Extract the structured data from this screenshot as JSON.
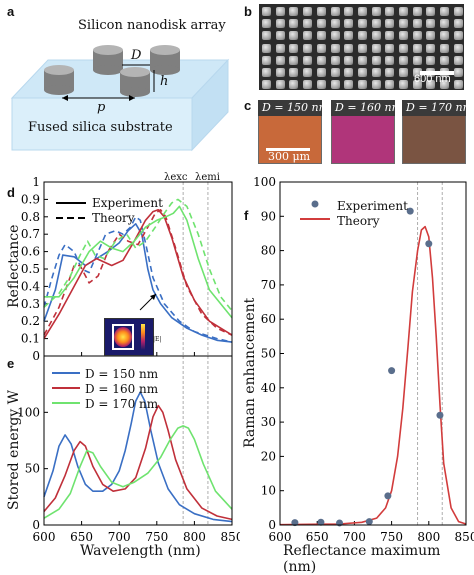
{
  "panel_letters": {
    "a": "a",
    "b": "b",
    "c": "c",
    "d": "d",
    "e": "e",
    "f": "f"
  },
  "panel_a": {
    "title": "Silicon nanodisk array",
    "diameter_symbol": "D",
    "height_symbol": "h",
    "period_symbol": "p",
    "substrate_label": "Fused silica substrate",
    "colors": {
      "substrate": "#cfe8f7",
      "disk": "#8e8e8e"
    }
  },
  "panel_b": {
    "scale_label": "600 nm"
  },
  "panel_c": {
    "labels": [
      "D = 150 nm",
      "D = 160 nm",
      "D = 170 nm"
    ],
    "scale_label": "300 μm",
    "colors": [
      "#c8693a",
      "#b0357a",
      "#7a5442"
    ]
  },
  "panel_d": {
    "ylabel": "Reflectance",
    "legend": {
      "experiment": "Experiment",
      "theory": "Theory"
    },
    "marker_exc": "λexc",
    "marker_emi": "λemi",
    "colorbar_label": "|E|"
  },
  "panel_e": {
    "ylabel": "Stored energy W",
    "xlabel": "Wavelength (nm)"
  },
  "panel_f": {
    "ylabel": "Raman enhancement",
    "xlabel": "Reflectance maximum (nm)",
    "legend": {
      "experiment": "Experiment",
      "theory": "Theory"
    }
  },
  "chart_data": [
    {
      "id": "d",
      "type": "line",
      "xlim": [
        600,
        850
      ],
      "ylim": [
        0,
        1.0
      ],
      "xticks": [
        600,
        650,
        700,
        750,
        800,
        850
      ],
      "yticks": [
        0,
        0.1,
        0.2,
        0.3,
        0.4,
        0.5,
        0.6,
        0.7,
        0.8,
        0.9,
        1
      ],
      "ytick_labels": [
        "0",
        "0.1",
        "0.2",
        "0.3",
        "0.4",
        "0.5",
        "0.6",
        "0.7",
        "0.8",
        "0.9",
        "1"
      ],
      "vlines": [
        785,
        818
      ],
      "series": [
        {
          "name": "D = 150 nm",
          "style": "solid",
          "color": "#3a6fc4",
          "x": [
            600,
            615,
            625,
            640,
            655,
            670,
            685,
            700,
            712,
            722,
            730,
            738,
            745,
            755,
            770,
            790,
            810,
            830,
            850
          ],
          "y": [
            0.2,
            0.38,
            0.58,
            0.57,
            0.52,
            0.56,
            0.6,
            0.65,
            0.72,
            0.76,
            0.7,
            0.5,
            0.38,
            0.3,
            0.22,
            0.16,
            0.12,
            0.09,
            0.08
          ]
        },
        {
          "name": "D = 150 nm",
          "style": "dashed",
          "color": "#3a6fc4",
          "x": [
            600,
            610,
            620,
            628,
            640,
            650,
            660,
            670,
            682,
            695,
            705,
            715,
            722,
            728,
            735,
            745,
            760,
            780,
            800,
            830,
            850
          ],
          "y": [
            0.28,
            0.44,
            0.58,
            0.64,
            0.6,
            0.5,
            0.48,
            0.58,
            0.7,
            0.72,
            0.7,
            0.74,
            0.8,
            0.78,
            0.65,
            0.45,
            0.3,
            0.2,
            0.14,
            0.1,
            0.08
          ]
        },
        {
          "name": "D = 160 nm",
          "style": "solid",
          "color": "#c0303a",
          "x": [
            600,
            620,
            640,
            655,
            670,
            690,
            705,
            720,
            735,
            745,
            752,
            760,
            770,
            785,
            800,
            820,
            850
          ],
          "y": [
            0.1,
            0.24,
            0.4,
            0.52,
            0.56,
            0.52,
            0.55,
            0.66,
            0.78,
            0.83,
            0.84,
            0.8,
            0.68,
            0.46,
            0.32,
            0.2,
            0.12
          ]
        },
        {
          "name": "D = 160 nm",
          "style": "dashed",
          "color": "#c0303a",
          "x": [
            600,
            620,
            632,
            640,
            648,
            660,
            672,
            685,
            700,
            712,
            725,
            738,
            748,
            755,
            762,
            775,
            790,
            810,
            830,
            850
          ],
          "y": [
            0.12,
            0.28,
            0.42,
            0.52,
            0.52,
            0.42,
            0.46,
            0.6,
            0.7,
            0.66,
            0.64,
            0.74,
            0.82,
            0.84,
            0.8,
            0.62,
            0.4,
            0.24,
            0.16,
            0.12
          ]
        },
        {
          "name": "D = 170 nm",
          "style": "solid",
          "color": "#6fe36f",
          "x": [
            600,
            620,
            640,
            660,
            675,
            690,
            705,
            720,
            735,
            750,
            762,
            772,
            780,
            790,
            805,
            820,
            850
          ],
          "y": [
            0.34,
            0.34,
            0.45,
            0.6,
            0.66,
            0.62,
            0.6,
            0.66,
            0.74,
            0.78,
            0.8,
            0.82,
            0.86,
            0.78,
            0.56,
            0.38,
            0.22
          ]
        },
        {
          "name": "D = 170 nm",
          "style": "dashed",
          "color": "#6fe36f",
          "x": [
            600,
            620,
            635,
            648,
            658,
            668,
            680,
            695,
            710,
            722,
            735,
            748,
            760,
            770,
            778,
            790,
            805,
            820,
            835,
            850
          ],
          "y": [
            0.28,
            0.36,
            0.46,
            0.58,
            0.66,
            0.58,
            0.56,
            0.66,
            0.7,
            0.62,
            0.66,
            0.74,
            0.82,
            0.88,
            0.9,
            0.86,
            0.7,
            0.5,
            0.34,
            0.26
          ]
        }
      ]
    },
    {
      "id": "e",
      "type": "line",
      "xlim": [
        600,
        850
      ],
      "ylim": [
        0,
        150
      ],
      "xticks": [
        600,
        650,
        700,
        750,
        800,
        850
      ],
      "yticks": [
        0,
        50,
        100,
        150
      ],
      "vlines": [
        785,
        818
      ],
      "legend": [
        "D = 150 nm",
        "D = 160 nm",
        "D = 170 nm"
      ],
      "series": [
        {
          "name": "D = 150 nm",
          "color": "#3a6fc4",
          "x": [
            600,
            612,
            620,
            628,
            636,
            645,
            655,
            665,
            678,
            690,
            700,
            708,
            716,
            722,
            728,
            734,
            742,
            752,
            765,
            780,
            800,
            825,
            850
          ],
          "y": [
            25,
            48,
            70,
            80,
            72,
            52,
            36,
            30,
            30,
            36,
            48,
            66,
            90,
            110,
            118,
            110,
            84,
            55,
            32,
            18,
            10,
            5,
            3
          ]
        },
        {
          "name": "D = 160 nm",
          "color": "#c0303a",
          "x": [
            600,
            615,
            628,
            640,
            648,
            655,
            665,
            678,
            692,
            708,
            722,
            735,
            745,
            752,
            758,
            765,
            775,
            790,
            810,
            830,
            850
          ],
          "y": [
            12,
            24,
            44,
            66,
            74,
            70,
            52,
            36,
            30,
            32,
            42,
            68,
            96,
            106,
            100,
            84,
            58,
            32,
            15,
            8,
            5
          ]
        },
        {
          "name": "D = 170 nm",
          "color": "#6fe36f",
          "x": [
            600,
            620,
            635,
            648,
            657,
            665,
            675,
            690,
            705,
            720,
            738,
            755,
            768,
            778,
            785,
            792,
            800,
            812,
            828,
            850
          ],
          "y": [
            6,
            14,
            28,
            52,
            66,
            64,
            52,
            38,
            34,
            38,
            46,
            60,
            76,
            86,
            88,
            86,
            76,
            54,
            30,
            14
          ]
        }
      ]
    },
    {
      "id": "f",
      "type": "scatter",
      "xlim": [
        600,
        850
      ],
      "ylim": [
        0,
        100
      ],
      "xticks": [
        600,
        650,
        700,
        750,
        800,
        850
      ],
      "yticks": [
        0,
        10,
        20,
        30,
        40,
        50,
        60,
        70,
        80,
        90,
        100
      ],
      "vlines": [
        785,
        818
      ],
      "experiment": {
        "x": [
          620,
          655,
          680,
          720,
          745,
          750,
          775,
          800,
          815
        ],
        "y": [
          0.7,
          0.8,
          0.6,
          1.0,
          8.5,
          45,
          91.5,
          82,
          32
        ]
      },
      "theory": {
        "color": "#d23c3c",
        "x": [
          600,
          640,
          680,
          710,
          730,
          742,
          750,
          758,
          765,
          772,
          778,
          785,
          790,
          795,
          800,
          805,
          810,
          815,
          820,
          830,
          840,
          850
        ],
        "y": [
          0.1,
          0.2,
          0.3,
          0.8,
          2,
          5,
          10,
          20,
          34,
          52,
          68,
          80,
          86,
          87,
          84,
          72,
          55,
          35,
          18,
          5,
          1,
          0.3
        ]
      }
    }
  ]
}
